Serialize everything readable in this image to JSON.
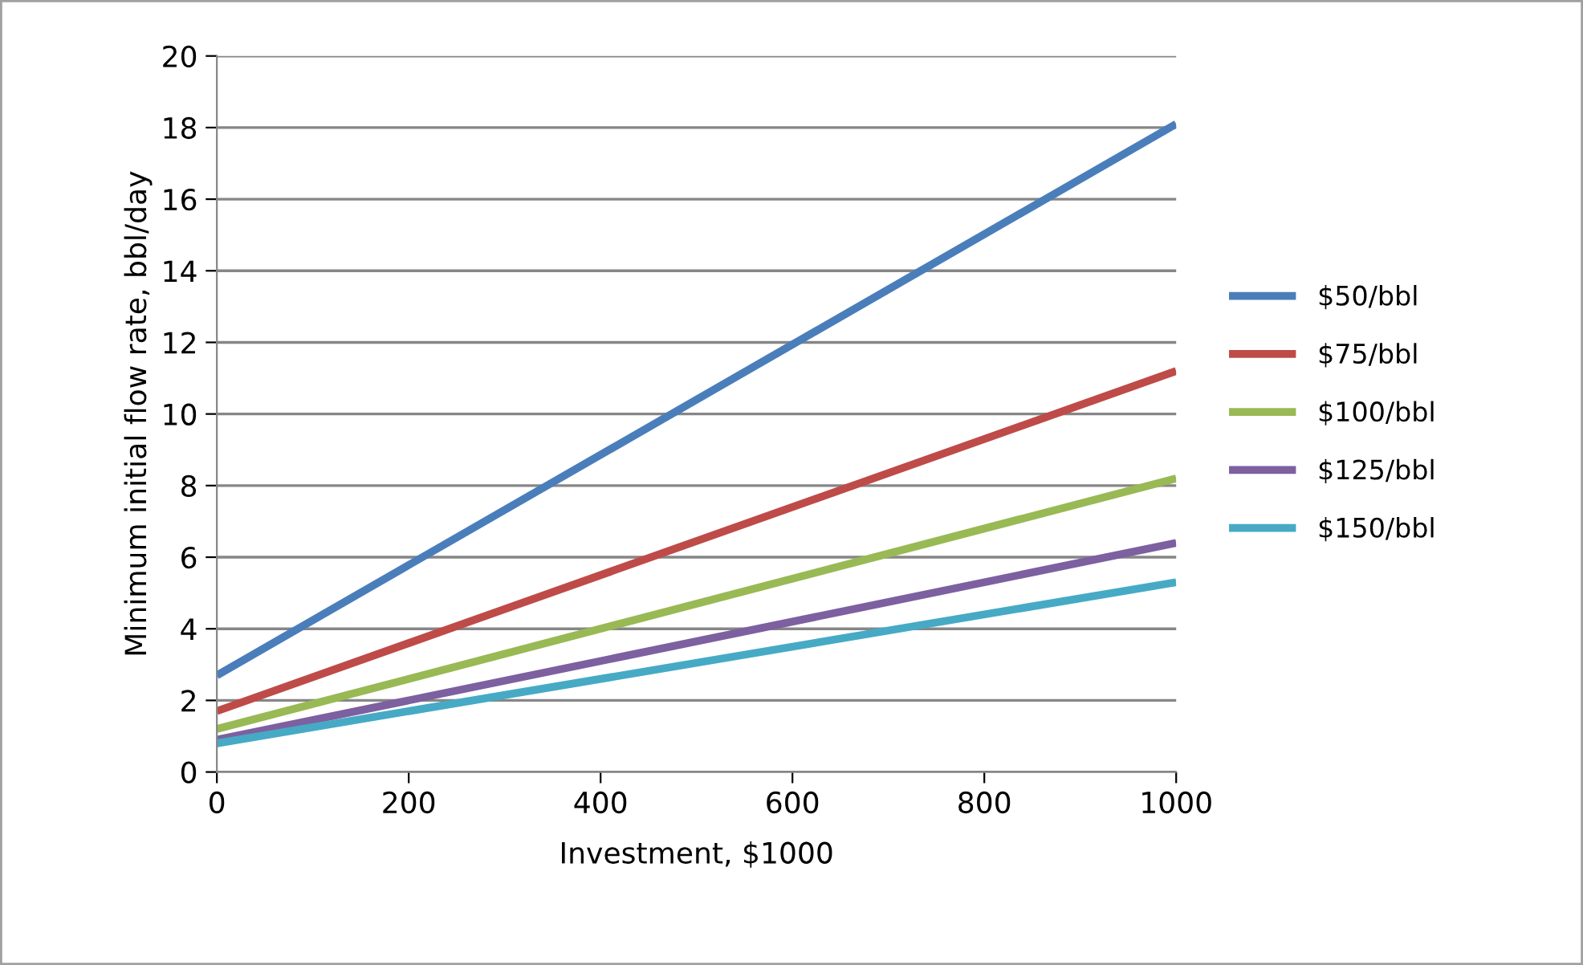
{
  "chart_data": {
    "type": "line",
    "xlabel": "Investment, $1000",
    "ylabel": "Minimum initial flow rate, bbl/day",
    "x": [
      0,
      1000
    ],
    "series": [
      {
        "name": "$50/bbl",
        "color": "#4a7ebb",
        "values": [
          2.7,
          18.1
        ]
      },
      {
        "name": "$75/bbl",
        "color": "#be4b48",
        "values": [
          1.7,
          11.2
        ]
      },
      {
        "name": "$100/bbl",
        "color": "#98b954",
        "values": [
          1.2,
          8.2
        ]
      },
      {
        "name": "$125/bbl",
        "color": "#7d60a0",
        "values": [
          0.9,
          6.4
        ]
      },
      {
        "name": "$150/bbl",
        "color": "#46aac5",
        "values": [
          0.8,
          5.3
        ]
      }
    ],
    "xlim": [
      0,
      1000
    ],
    "xticks": [
      0,
      200,
      400,
      600,
      800,
      1000
    ],
    "ylim": [
      0,
      20
    ],
    "yticks": [
      0,
      2,
      4,
      6,
      8,
      10,
      12,
      14,
      16,
      18,
      20
    ],
    "grid": "y",
    "legend": "right",
    "marker": "none",
    "line_style": "solid"
  }
}
